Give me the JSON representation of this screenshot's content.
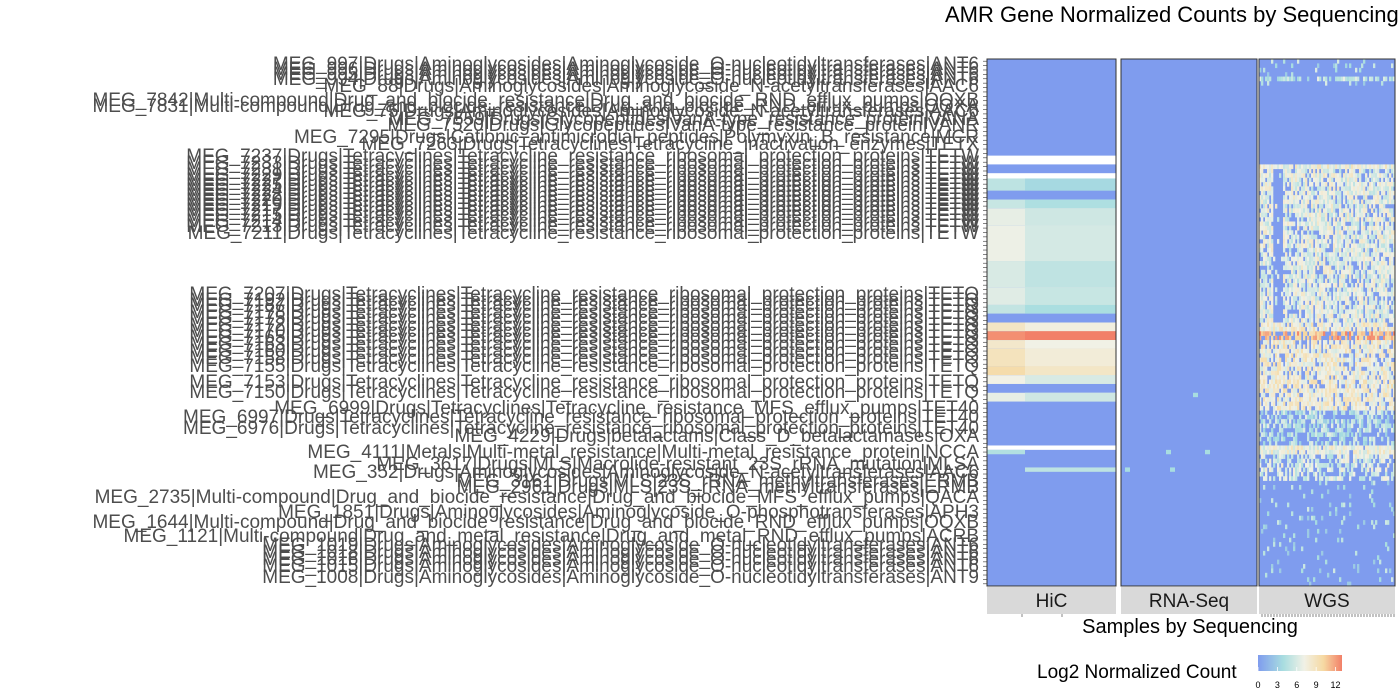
{
  "chart_data": {
    "type": "heatmap",
    "title": "AMR Gene Normalized Counts by Sequencing",
    "xlabel": "Samples by Sequencing",
    "ylabel": "",
    "facets": [
      "HiC",
      "RNA-Seq",
      "WGS"
    ],
    "legend": {
      "title": "Log2 Normalized Count",
      "ticks": [
        0,
        3,
        6,
        9,
        12
      ],
      "range": [
        0,
        13
      ],
      "placement": "bottom",
      "colors": [
        "#7f9cee",
        "#a8dde0",
        "#f1f1e6",
        "#f6d9a2",
        "#f28068"
      ]
    },
    "row_labels": [
      "MEG_997|Drugs|Aminoglycosides|Aminoglycoside_O-nucleotidyltransferases|ANT6",
      "MEG_996|Drugs|Aminoglycosides|Aminoglycoside_O-nucleotidyltransferases|ANT6",
      "MEG_995|Drugs|Aminoglycosides|Aminoglycoside_O-nucleotidyltransferases|ANT6",
      "MEG_994|Drugs|Aminoglycosides|Aminoglycoside_O-nucleotidyltransferases|ANT6",
      "MEG_88|Drugs|Aminoglycosides|Aminoglycoside_N-acetyltransferases|AAC6",
      "MEG_7842|Multi-compound|Drug_and_biocide_resistance|Drug_and_biocide_RND_efflux_pumps|OQXB",
      "MEG_7831|Multi-compound|Drug_and_biocide_resistance|Drug_and_biocide_RND_efflux_pumps|OQXA",
      "MEG_75|Drugs|Aminoglycosides|Aminoglycoside_N-acetyltransferases|AAC6",
      "MEG_7559|Drugs|Glycopeptides|VanA-type_resistance_protein|VANA",
      "MEG_7520|Drugs|Glycopeptides|VanA-type_resistance_protein|VANR",
      "MEG_7295|Drugs|Cationic_antimicrobial_peptides|Polymyxin_B_resistance|MCR",
      "MEG_7263|Drugs|Tetracyclines|Tetracycline_inactivation_enzymes|TETX",
      "MEG_7237|Drugs|Tetracyclines|Tetracycline_resistance_ribosomal_protection_proteins|TETW",
      "MEG_7233|Drugs|Tetracyclines|Tetracycline_resistance_ribosomal_protection_proteins|TETW",
      "MEG_7231|Drugs|Tetracyclines|Tetracycline_resistance_ribosomal_protection_proteins|TETW",
      "MEG_7229|Drugs|Tetracyclines|Tetracycline_resistance_ribosomal_protection_proteins|TETW",
      "MEG_7227|Drugs|Tetracyclines|Tetracycline_resistance_ribosomal_protection_proteins|TETW",
      "MEG_7225|Drugs|Tetracyclines|Tetracycline_resistance_ribosomal_protection_proteins|TETW",
      "MEG_7224|Drugs|Tetracyclines|Tetracycline_resistance_ribosomal_protection_proteins|TETW",
      "MEG_7222|Drugs|Tetracyclines|Tetracycline_resistance_ribosomal_protection_proteins|TETW",
      "MEG_7220|Drugs|Tetracyclines|Tetracycline_resistance_ribosomal_protection_proteins|TETW",
      "MEG_7219|Drugs|Tetracyclines|Tetracycline_resistance_ribosomal_protection_proteins|TETW",
      "MEG_7217|Drugs|Tetracyclines|Tetracycline_resistance_ribosomal_protection_proteins|TETW",
      "MEG_7215|Drugs|Tetracyclines|Tetracycline_resistance_ribosomal_protection_proteins|TETW",
      "MEG_7214|Drugs|Tetracyclines|Tetracycline_resistance_ribosomal_protection_proteins|TETW",
      "MEG_7213|Drugs|Tetracyclines|Tetracycline_resistance_ribosomal_protection_proteins|TETW",
      "MEG_7211|Drugs|Tetracyclines|Tetracycline_resistance_ribosomal_protection_proteins|TETW",
      "MEG_7207|Drugs|Tetracyclines|Tetracycline_resistance_ribosomal_protection_proteins|TETQ",
      "MEG_7192|Drugs|Tetracyclines|Tetracycline_resistance_ribosomal_protection_proteins|TETQ",
      "MEG_7187|Drugs|Tetracyclines|Tetracycline_resistance_ribosomal_protection_proteins|TETQ",
      "MEG_7178|Drugs|Tetracyclines|Tetracycline_resistance_ribosomal_protection_proteins|TETQ",
      "MEG_7175|Drugs|Tetracyclines|Tetracycline_resistance_ribosomal_protection_proteins|TETQ",
      "MEG_7172|Drugs|Tetracyclines|Tetracycline_resistance_ribosomal_protection_proteins|TETQ",
      "MEG_7170|Drugs|Tetracyclines|Tetracycline_resistance_ribosomal_protection_proteins|TETQ",
      "MEG_7165|Drugs|Tetracyclines|Tetracycline_resistance_ribosomal_protection_proteins|TETQ",
      "MEG_7163|Drugs|Tetracyclines|Tetracycline_resistance_ribosomal_protection_proteins|TETQ",
      "MEG_7160|Drugs|Tetracyclines|Tetracycline_resistance_ribosomal_protection_proteins|TETQ",
      "MEG_7158|Drugs|Tetracyclines|Tetracycline_resistance_ribosomal_protection_proteins|TETQ",
      "MEG_7155|Drugs|Tetracyclines|Tetracycline_resistance_ribosomal_protection_proteins|TETQ",
      "MEG_7153|Drugs|Tetracyclines|Tetracycline_resistance_ribosomal_protection_proteins|TETQ",
      "MEG_7150|Drugs|Tetracyclines|Tetracycline_resistance_ribosomal_protection_proteins|TETQ",
      "MEG_6999|Drugs|Tetracyclines|Tetracycline_resistance_MFS_efflux_pumps|TET40",
      "MEG_6997|Drugs|Tetracyclines|Tetracycline_resistance_ribosomal_protection_proteins|TET40",
      "MEG_6976|Drugs|Tetracyclines|Tetracycline_resistance_ribosomal_protection_proteins|TET40",
      "MEG_4229|Drugs|betalactams|Class_D_betalactamases|OXA",
      "MEG_4111|Metals|Multi-metal_resistance|Multi-metal_resistance_protein|NCCA",
      "MEG_3617|Drugs|MLS|Macrolide-resistant_23S_rRNA_mutation|MLSA",
      "MEG_352|Drugs|Aminoglycosides|Aminoglycoside_N-acetyltransferases|AAC6",
      "MEG_3161|Drugs|MLS|23S_rRNA_methyltransferases|ERMB",
      "MEG_2735|Multi-compound|Drug_and_biocide_resistance|Drug_and_biocide_MFS_efflux_pumps|QACA",
      "MEG_2961|Drugs|MLS|23S_rRNA_methyltransferases|ERMB",
      "MEG_1851|Drugs|Aminoglycosides|Aminoglycoside_O-phosphotransferases|APH3",
      "MEG_1644|Multi-compound|Drug_and_biocide_resistance|Drug_and_biocide_RND_efflux_pumps|OQXB",
      "MEG_1121|Multi-compound|Drug_and_metal_resistance|Drug_and_metal_RND_efflux_pumps|ACRB",
      "MEG_1019|Drugs|Aminoglycosides|Aminoglycoside_O-nucleotidyltransferases|ANT6",
      "MEG_1018|Drugs|Aminoglycosides|Aminoglycoside_O-nucleotidyltransferases|ANT6",
      "MEG_1016|Drugs|Aminoglycosides|Aminoglycoside_O-nucleotidyltransferases|ANT6",
      "MEG_1015|Drugs|Aminoglycosides|Aminoglycoside_O-nucleotidyltransferases|ANT6",
      "MEG_1008|Drugs|Aminoglycosides|Aminoglycoside_O-nucleotidyltransferases|ANT9"
    ]
  }
}
